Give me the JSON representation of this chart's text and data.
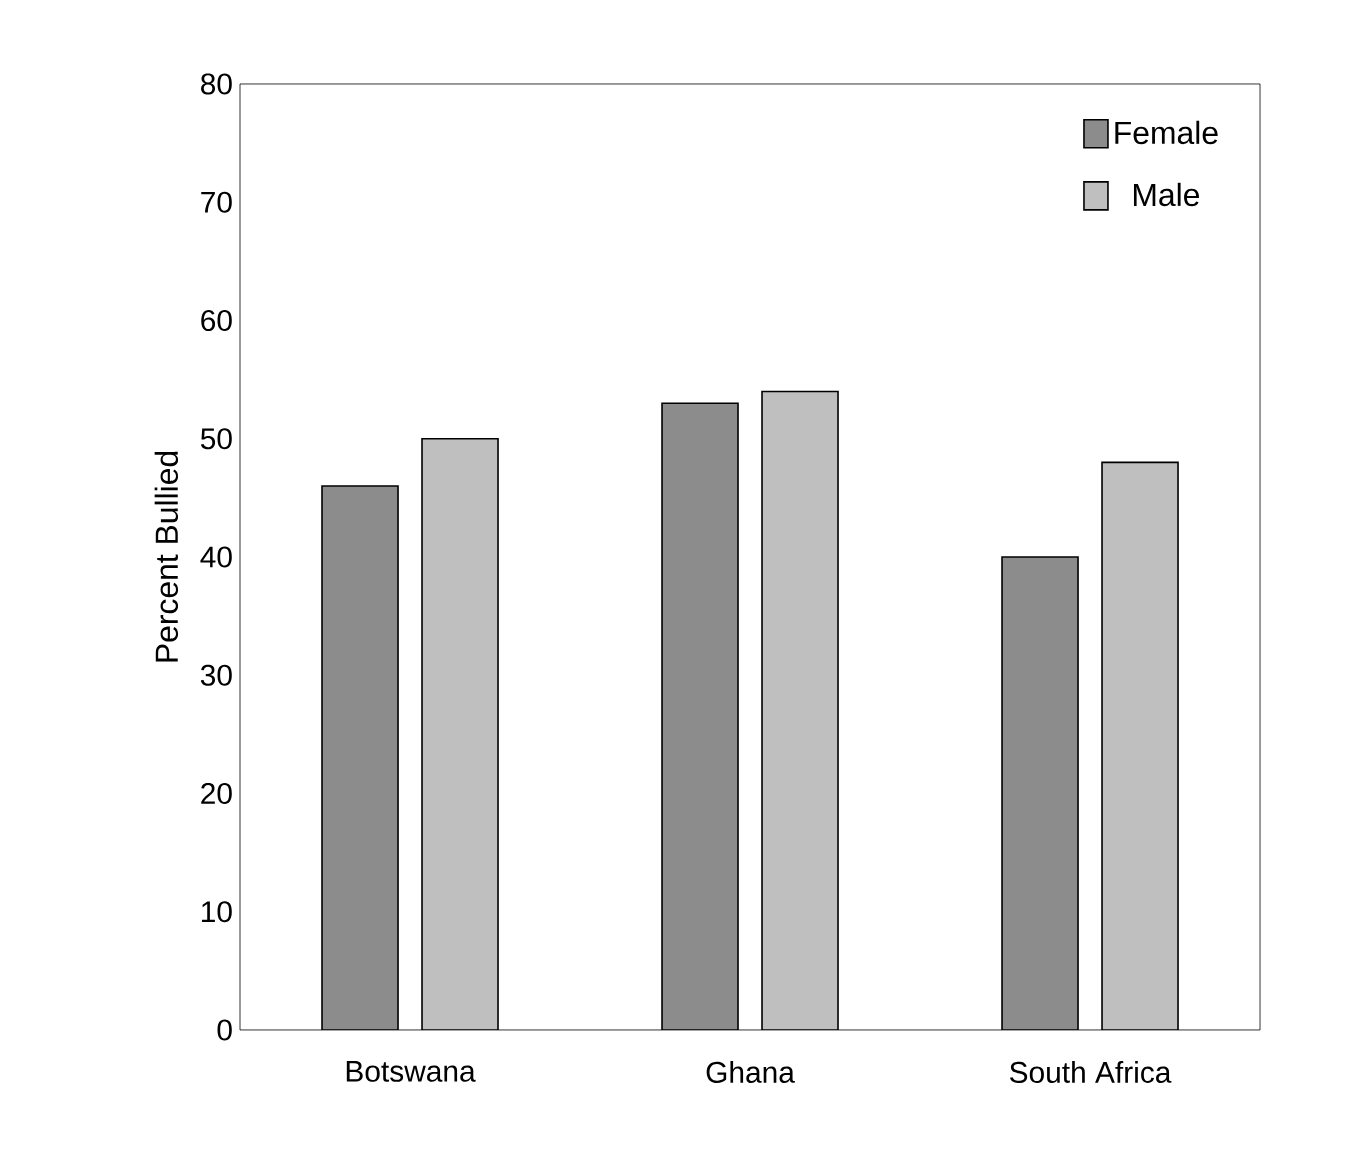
{
  "chart_data": {
    "type": "bar",
    "ylabel": "Percent Bullied",
    "categories": [
      "Botswana",
      "Ghana",
      "South Africa"
    ],
    "series": [
      {
        "name": "Female",
        "color": "#8c8c8c",
        "values": [
          46,
          53,
          40
        ]
      },
      {
        "name": "Male",
        "color": "#bfbfbf",
        "values": [
          50,
          54,
          48
        ]
      }
    ],
    "ylim": [
      0,
      80
    ],
    "yticks": [
      0,
      10,
      20,
      30,
      40,
      50,
      60,
      70,
      80
    ],
    "legend": "top right"
  }
}
